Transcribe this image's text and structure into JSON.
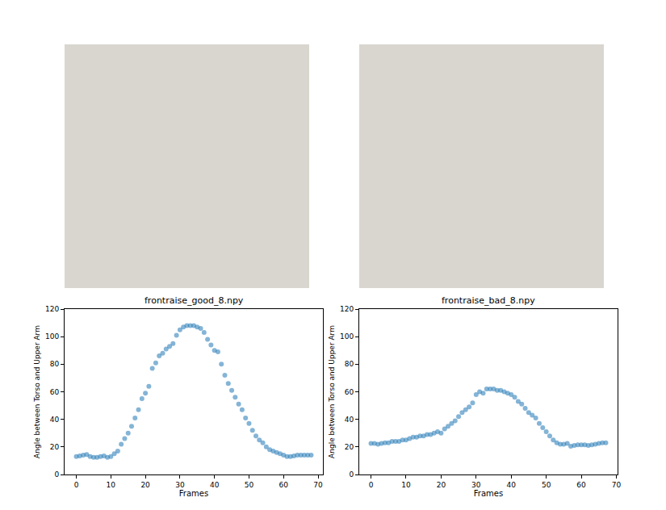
{
  "chart_data": [
    {
      "type": "scatter",
      "title": "frontraise_good_8.npy",
      "x_label": "Frames",
      "y_label": "Angle between Torso and Upper Arm",
      "x": [
        0,
        1,
        2,
        3,
        4,
        5,
        6,
        7,
        8,
        9,
        10,
        11,
        12,
        13,
        14,
        15,
        16,
        17,
        18,
        19,
        20,
        21,
        22,
        23,
        24,
        25,
        26,
        27,
        28,
        29,
        30,
        31,
        32,
        33,
        34,
        35,
        36,
        37,
        38,
        39,
        40,
        41,
        42,
        43,
        44,
        45,
        46,
        47,
        48,
        49,
        50,
        51,
        52,
        53,
        54,
        55,
        56,
        57,
        58,
        59,
        60,
        61,
        62,
        63,
        64,
        65,
        66,
        67,
        68
      ],
      "values": [
        13,
        13.5,
        14,
        14.5,
        13,
        12.5,
        12.5,
        13,
        13.5,
        12.5,
        13,
        15,
        17,
        22,
        26,
        30,
        35,
        41,
        47,
        55,
        59,
        64,
        77,
        81,
        86,
        88,
        91,
        93,
        95,
        101,
        105,
        107,
        108,
        108,
        108,
        107,
        106,
        103,
        98,
        94,
        90,
        89,
        80,
        72,
        66,
        61,
        56,
        51,
        47,
        41,
        37,
        32,
        28,
        25,
        23,
        20,
        18,
        17,
        16,
        15,
        14,
        13,
        13,
        13.5,
        14,
        14,
        14,
        14,
        14
      ],
      "color": "#1f77b4",
      "marker": "circle",
      "xlim": [
        -3.4,
        71.4
      ],
      "xticks": [
        0,
        10,
        20,
        30,
        40,
        50,
        60,
        70
      ],
      "ylim": [
        0,
        120
      ],
      "yticks": [
        0,
        20,
        40,
        60,
        80,
        100,
        120
      ],
      "grid": false
    },
    {
      "type": "scatter",
      "title": "frontraise_bad_8.npy",
      "x_label": "Frames",
      "y_label": "Angle between Torso and Upper Arm",
      "x": [
        0,
        1,
        2,
        3,
        4,
        5,
        6,
        7,
        8,
        9,
        10,
        11,
        12,
        13,
        14,
        15,
        16,
        17,
        18,
        19,
        20,
        21,
        22,
        23,
        24,
        25,
        26,
        27,
        28,
        29,
        30,
        31,
        32,
        33,
        34,
        35,
        36,
        37,
        38,
        39,
        40,
        41,
        42,
        43,
        44,
        45,
        46,
        47,
        48,
        49,
        50,
        51,
        52,
        53,
        54,
        55,
        56,
        57,
        58,
        59,
        60,
        61,
        62,
        63,
        64,
        65,
        66,
        67
      ],
      "values": [
        22.5,
        22.5,
        22,
        22.5,
        23,
        23,
        24,
        24,
        24,
        25,
        25,
        26,
        27,
        27,
        28,
        28,
        29,
        29,
        30,
        31,
        30,
        33,
        35,
        37,
        39,
        42,
        45,
        47,
        49,
        52,
        58,
        60,
        59,
        62,
        62,
        62,
        61,
        61,
        60,
        59,
        58,
        56,
        53,
        51,
        48,
        45,
        43,
        41,
        37,
        34,
        31,
        28,
        25,
        23,
        22,
        22,
        22.5,
        20.5,
        21,
        21.5,
        21.5,
        21.5,
        21,
        21.5,
        22,
        22.5,
        23,
        23
      ],
      "color": "#1f77b4",
      "marker": "circle",
      "xlim": [
        -3.35,
        70.35
      ],
      "xticks": [
        0,
        10,
        20,
        30,
        40,
        50,
        60,
        70
      ],
      "ylim": [
        0,
        120
      ],
      "yticks": [
        0,
        20,
        40,
        60,
        80,
        100,
        120
      ],
      "grid": false
    }
  ]
}
